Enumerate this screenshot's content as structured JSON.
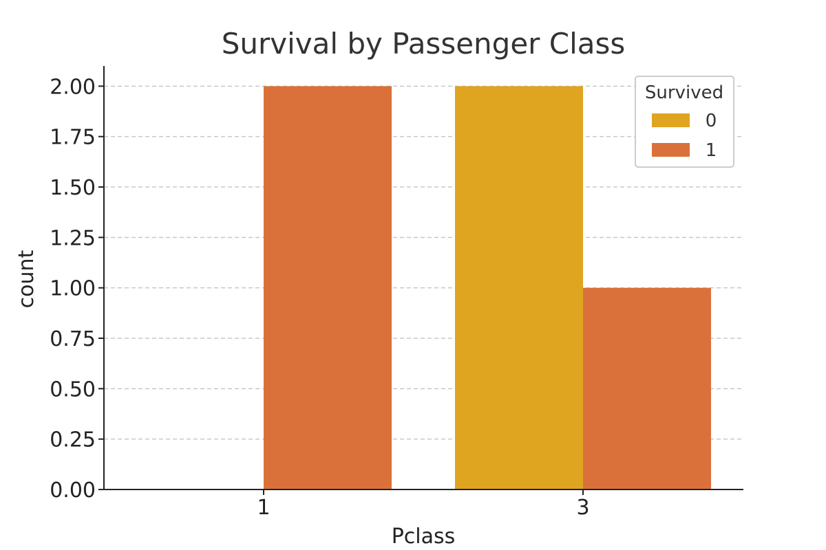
{
  "chart_data": {
    "type": "bar",
    "title": "Survival by Passenger Class",
    "xlabel": "Pclass",
    "ylabel": "count",
    "categories": [
      "1",
      "3"
    ],
    "series": [
      {
        "name": "0",
        "color": "#DFA420",
        "values": [
          0,
          2
        ]
      },
      {
        "name": "1",
        "color": "#DA713B",
        "values": [
          2,
          1
        ]
      }
    ],
    "ylim": [
      0,
      2.1
    ],
    "yticks": [
      0.0,
      0.25,
      0.5,
      0.75,
      1.0,
      1.25,
      1.5,
      1.75,
      2.0
    ],
    "ytick_labels": [
      "0.00",
      "0.25",
      "0.50",
      "0.75",
      "1.00",
      "1.25",
      "1.50",
      "1.75",
      "2.00"
    ],
    "grid": "y-dashed",
    "legend": {
      "title": "Survived",
      "placement": "top-right"
    }
  }
}
